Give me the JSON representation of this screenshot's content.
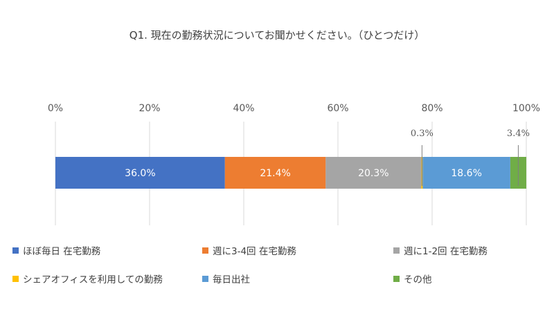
{
  "chart_data": {
    "type": "bar",
    "orientation": "horizontal-stacked-100",
    "title": "Q1. 現在の勤務状況についてお聞かせください。（ひとつだけ）",
    "xlim": [
      0,
      100
    ],
    "x_ticks": [
      "0%",
      "20%",
      "40%",
      "60%",
      "80%",
      "100%"
    ],
    "grid": true,
    "legend_position": "bottom",
    "series": [
      {
        "name": "ほぼ毎日 在宅勤務",
        "value": 36.0,
        "label": "36.0%",
        "color": "#4472C4",
        "label_placement": "inside"
      },
      {
        "name": "週に3-4回 在宅勤務",
        "value": 21.4,
        "label": "21.4%",
        "color": "#ED7D31",
        "label_placement": "inside"
      },
      {
        "name": "週に1-2回 在宅勤務",
        "value": 20.3,
        "label": "20.3%",
        "color": "#A5A5A5",
        "label_placement": "inside"
      },
      {
        "name": "シェアオフィスを利用しての勤務",
        "value": 0.3,
        "label": "0.3%",
        "color": "#FFC000",
        "label_placement": "callout"
      },
      {
        "name": "毎日出社",
        "value": 18.6,
        "label": "18.6%",
        "color": "#5B9BD5",
        "label_placement": "inside"
      },
      {
        "name": "その他",
        "value": 3.4,
        "label": "3.4%",
        "color": "#70AD47",
        "label_placement": "callout"
      }
    ]
  }
}
